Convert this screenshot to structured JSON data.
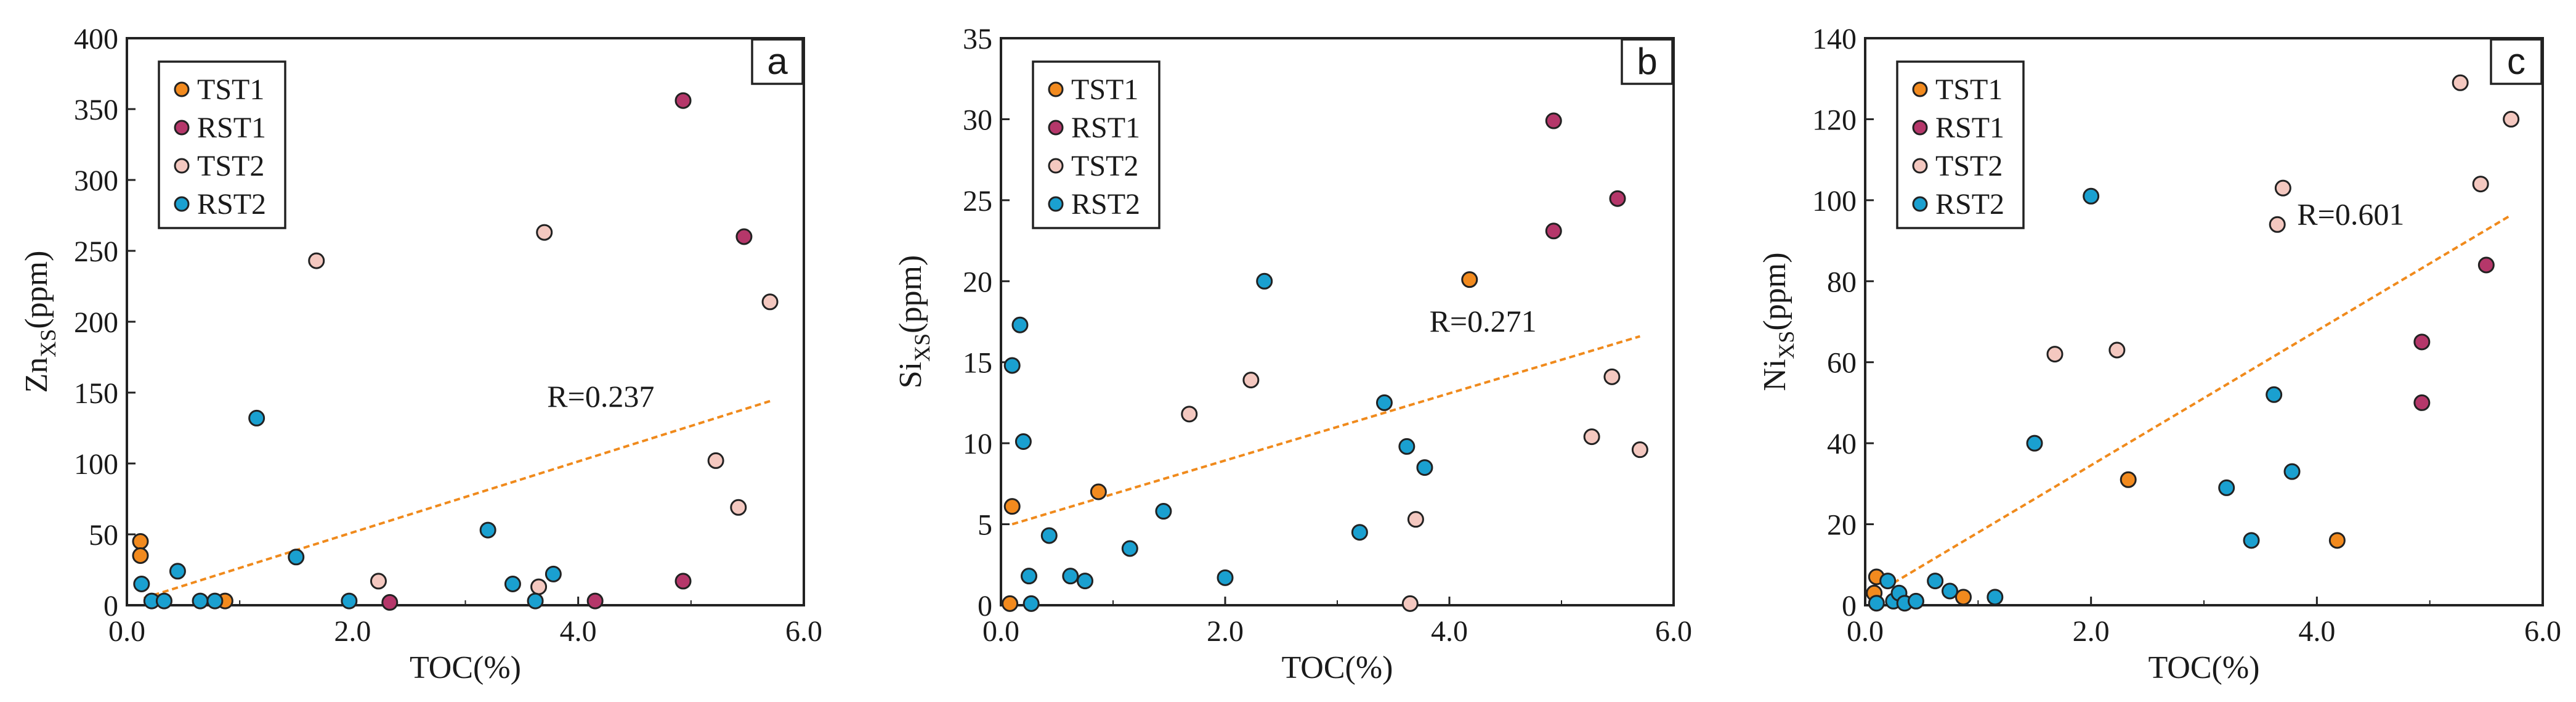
{
  "colors": {
    "TST1": "#f28a1e",
    "RST1": "#b5376a",
    "TST2": "#f4c8c0",
    "RST2": "#1aa0d0",
    "trend": "#f08a1c"
  },
  "chart_data": [
    {
      "type": "scatter",
      "panel_label": "a",
      "title": "",
      "xlabel": "TOC(%)",
      "ylabel_main": "Zn",
      "ylabel_sub": "XS",
      "ylabel_unit": "(ppm)",
      "xlim": [
        0,
        6
      ],
      "ylim": [
        0,
        400
      ],
      "xticks": [
        0,
        2,
        4,
        6
      ],
      "xtick_labels": [
        "0.0",
        "2.0",
        "4.0",
        "6.0"
      ],
      "yticks": [
        0,
        50,
        100,
        150,
        200,
        250,
        300,
        350,
        400
      ],
      "ytick_labels": [
        "0",
        "50",
        "100",
        "150",
        "200",
        "250",
        "300",
        "350",
        "400"
      ],
      "r_label": "R=0.237",
      "r_label_pos": [
        4.2,
        140
      ],
      "trendline": [
        [
          0.15,
          5
        ],
        [
          5.7,
          144
        ]
      ],
      "legend_position": "top-left",
      "series": [
        {
          "name": "TST1",
          "x": [
            0.12,
            0.12,
            0.87
          ],
          "y": [
            45,
            35,
            3
          ]
        },
        {
          "name": "RST1",
          "x": [
            2.33,
            4.15,
            4.93,
            4.93,
            5.47
          ],
          "y": [
            2,
            3,
            17,
            356,
            260
          ]
        },
        {
          "name": "TST2",
          "x": [
            1.68,
            2.23,
            3.65,
            3.7,
            5.22,
            5.42,
            5.7
          ],
          "y": [
            243,
            17,
            13,
            263,
            102,
            69,
            214
          ]
        },
        {
          "name": "RST2",
          "x": [
            0.13,
            0.22,
            0.33,
            0.45,
            0.65,
            0.78,
            1.15,
            1.5,
            1.97,
            3.2,
            3.42,
            3.62,
            3.78
          ],
          "y": [
            15,
            3,
            3,
            24,
            3,
            3,
            132,
            34,
            3,
            53,
            15,
            3,
            22
          ]
        }
      ]
    },
    {
      "type": "scatter",
      "panel_label": "b",
      "title": "",
      "xlabel": "TOC(%)",
      "ylabel_main": "Si",
      "ylabel_sub": "XS",
      "ylabel_unit": "(ppm)",
      "xlim": [
        0,
        6
      ],
      "ylim": [
        0,
        35
      ],
      "xticks": [
        0,
        2,
        4,
        6
      ],
      "xtick_labels": [
        "0.0",
        "2.0",
        "4.0",
        "6.0"
      ],
      "yticks": [
        0,
        5,
        10,
        15,
        20,
        25,
        30,
        35
      ],
      "ytick_labels": [
        "0",
        "5",
        "10",
        "15",
        "20",
        "25",
        "30",
        "35"
      ],
      "r_label": "R=0.271",
      "r_label_pos": [
        4.3,
        16.9
      ],
      "trendline": [
        [
          0.1,
          5.0
        ],
        [
          5.7,
          16.6
        ]
      ],
      "legend_position": "top-left",
      "series": [
        {
          "name": "TST1",
          "x": [
            0.08,
            0.1,
            0.87,
            4.18
          ],
          "y": [
            0.1,
            6.1,
            7.0,
            20.1
          ]
        },
        {
          "name": "RST1",
          "x": [
            4.93,
            4.93,
            5.5
          ],
          "y": [
            23.1,
            29.9,
            25.1
          ]
        },
        {
          "name": "TST2",
          "x": [
            1.68,
            2.23,
            3.65,
            3.7,
            5.27,
            5.45,
            5.7
          ],
          "y": [
            11.8,
            13.9,
            0.1,
            5.3,
            10.4,
            14.1,
            9.6
          ]
        },
        {
          "name": "RST2",
          "x": [
            0.1,
            0.17,
            0.2,
            0.25,
            0.27,
            0.43,
            0.62,
            0.75,
            1.15,
            1.45,
            2.0,
            2.35,
            3.2,
            3.42,
            3.62,
            3.78
          ],
          "y": [
            14.8,
            17.3,
            10.1,
            1.8,
            0.1,
            4.3,
            1.8,
            1.5,
            3.5,
            5.8,
            1.7,
            20.0,
            4.5,
            12.5,
            9.8,
            8.5
          ]
        }
      ]
    },
    {
      "type": "scatter",
      "panel_label": "c",
      "title": "",
      "xlabel": "TOC(%)",
      "ylabel_main": "Ni",
      "ylabel_sub": "XS",
      "ylabel_unit": "(ppm)",
      "xlim": [
        0,
        6
      ],
      "ylim": [
        0,
        140
      ],
      "xticks": [
        0,
        2,
        4,
        6
      ],
      "xtick_labels": [
        "0.0",
        "2.0",
        "4.0",
        "6.0"
      ],
      "yticks": [
        0,
        20,
        40,
        60,
        80,
        100,
        120,
        140
      ],
      "ytick_labels": [
        "0",
        "20",
        "40",
        "60",
        "80",
        "100",
        "120",
        "140"
      ],
      "r_label": "R=0.601",
      "r_label_pos": [
        4.3,
        94
      ],
      "trendline": [
        [
          0.1,
          3
        ],
        [
          5.7,
          96
        ]
      ],
      "legend_position": "top-left",
      "series": [
        {
          "name": "TST1",
          "x": [
            0.08,
            0.1,
            0.87,
            2.33,
            4.18
          ],
          "y": [
            3,
            7,
            2,
            31,
            16
          ]
        },
        {
          "name": "RST1",
          "x": [
            4.93,
            4.93,
            5.5
          ],
          "y": [
            50,
            65,
            84
          ]
        },
        {
          "name": "TST2",
          "x": [
            1.68,
            2.23,
            3.65,
            3.7,
            5.27,
            5.45,
            5.72
          ],
          "y": [
            62,
            63,
            94,
            103,
            129,
            104,
            120
          ]
        },
        {
          "name": "RST2",
          "x": [
            0.1,
            0.2,
            0.25,
            0.3,
            0.35,
            0.45,
            0.62,
            0.75,
            1.15,
            1.5,
            2.0,
            3.2,
            3.42,
            3.62,
            3.78
          ],
          "y": [
            0.5,
            6,
            1,
            3,
            0.5,
            1,
            6,
            3.5,
            2,
            40,
            101,
            29,
            16,
            52,
            33
          ]
        }
      ]
    }
  ]
}
